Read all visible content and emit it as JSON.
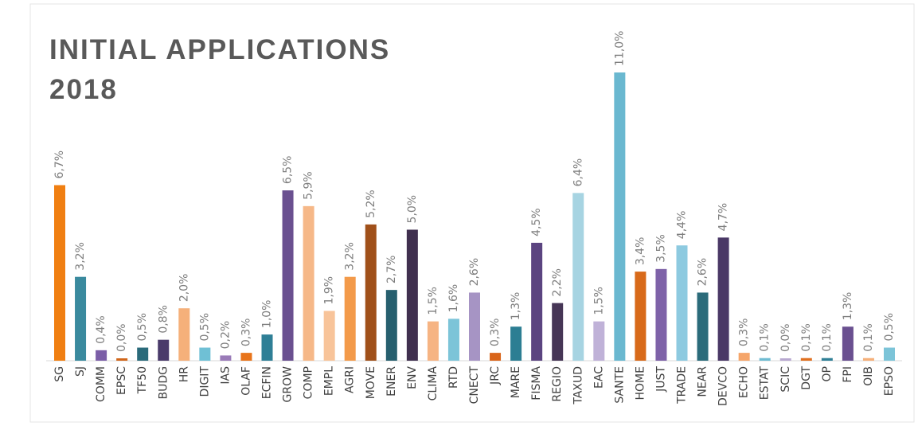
{
  "chart_data": {
    "type": "bar",
    "title": "INITIAL APPLICATIONS 2018",
    "categories": [
      "SG",
      "SJ",
      "COMM",
      "EPSC",
      "TF50",
      "BUDG",
      "HR",
      "DIGIT",
      "IAS",
      "OLAF",
      "ECFIN",
      "GROW",
      "COMP",
      "EMPL",
      "AGRI",
      "MOVE",
      "ENER",
      "ENV",
      "CLIMA",
      "RTD",
      "CNECT",
      "JRC",
      "MARE",
      "FISMA",
      "REGIO",
      "TAXUD",
      "EAC",
      "SANTE",
      "HOME",
      "JUST",
      "TRADE",
      "NEAR",
      "DEVCO",
      "ECHO",
      "ESTAT",
      "SCIC",
      "DGT",
      "OP",
      "FPI",
      "OIB",
      "EPSO"
    ],
    "values": [
      6.7,
      3.2,
      0.4,
      0.0,
      0.5,
      0.8,
      2.0,
      0.5,
      0.2,
      0.3,
      1.0,
      6.5,
      5.9,
      1.9,
      3.2,
      5.2,
      2.7,
      5.0,
      1.5,
      1.6,
      2.6,
      0.3,
      1.3,
      4.5,
      2.2,
      6.4,
      1.5,
      11.0,
      3.4,
      3.5,
      4.4,
      2.6,
      4.7,
      0.3,
      0.1,
      0.0,
      0.1,
      0.1,
      1.3,
      0.1,
      0.5
    ],
    "value_labels": [
      "6,7%",
      "3,2%",
      "0,4%",
      "0,0%",
      "0,5%",
      "0,8%",
      "2,0%",
      "0,5%",
      "0,2%",
      "0,3%",
      "1,0%",
      "6,5%",
      "5,9%",
      "1,9%",
      "3,2%",
      "5,2%",
      "2,7%",
      "5,0%",
      "1,5%",
      "1,6%",
      "2,6%",
      "0,3%",
      "1,3%",
      "4,5%",
      "2,2%",
      "6,4%",
      "1,5%",
      "11,0%",
      "3,4%",
      "3,5%",
      "4,4%",
      "2,6%",
      "4,7%",
      "0,3%",
      "0,1%",
      "0,0%",
      "0,1%",
      "0,1%",
      "1,3%",
      "0,1%",
      "0,5%"
    ],
    "colors": [
      "#f07f12",
      "#3a8a9e",
      "#7b5ea7",
      "#d0661a",
      "#2a6a7a",
      "#4a3a6a",
      "#f5b07a",
      "#6fc0d5",
      "#9a7bb8",
      "#e8741a",
      "#2f7f96",
      "#6a5090",
      "#f6b888",
      "#f8c49a",
      "#f39a4a",
      "#a0501a",
      "#275f6e",
      "#40304f",
      "#f6b483",
      "#7cc4d8",
      "#a694c4",
      "#d9651a",
      "#2c7e93",
      "#5b4480",
      "#463656",
      "#a7d4e2",
      "#c0b2d8",
      "#6ab8d0",
      "#d86a1a",
      "#7e62a8",
      "#8dcae0",
      "#2b6b7a",
      "#4a3866",
      "#f5a56a",
      "#6fbcd2",
      "#b8a8d0",
      "#e07020",
      "#2f7f96",
      "#6a5090",
      "#f5b07a",
      "#7cc4d8"
    ]
  }
}
